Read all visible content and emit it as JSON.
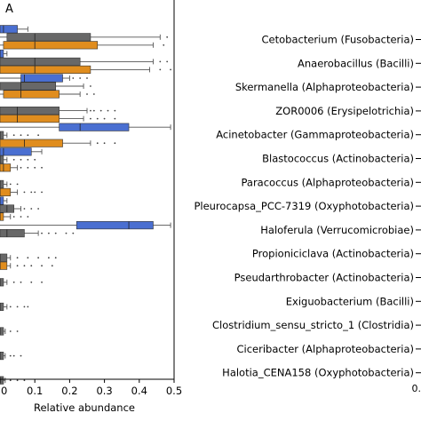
{
  "panel_label": "A",
  "right_panel_tick": "0.",
  "colors": {
    "blue": "#4a6fd1",
    "gray": "#686868",
    "orange": "#e08d1e"
  },
  "chart_data": {
    "type": "box",
    "orientation": "horizontal",
    "xlabel": "Relative abundance",
    "xlim": [
      0,
      0.5
    ],
    "xticks": [
      0,
      0.1,
      0.2,
      0.3,
      0.4,
      0.5
    ],
    "xtick_labels": [
      "0",
      "0.1",
      "0.2",
      "0.3",
      "0.4",
      "0.5"
    ],
    "categories": [
      "Cetobacterium (Fusobacteria)",
      "Anaerobacillus (Bacilli)",
      "Skermanella (Alphaproteobacteria)",
      "ZOR0006 (Erysipelotrichia)",
      "Acinetobacter (Gammaproteobacteria)",
      "Blastococcus (Actinobacteria)",
      "Paracoccus (Alphaproteobacteria)",
      "Pleurocapsa_PCC-7319 (Oxyphotobacteria)",
      "Haloferula (Verrucomicrobiae)",
      "Propioniciclava (Actinobacteria)",
      "Pseudarthrobacter (Actinobacteria)",
      "Exiguobacterium (Bacilli)",
      "Clostridium_sensu_stricto_1 (Clostridia)",
      "Ciceribacter (Alphaproteobacteria)",
      "Halotia_CENA158 (Oxyphotobacteria)"
    ],
    "series": [
      {
        "color": "blue",
        "boxes": [
          {
            "min": 0,
            "q1": 0.0,
            "median": 0.01,
            "q3": 0.05,
            "max": 0.08,
            "fliers": []
          },
          {
            "min": 0,
            "q1": 0.0,
            "median": 0.0,
            "q3": 0.01,
            "max": 0.02,
            "fliers": []
          },
          {
            "min": 0,
            "q1": 0.06,
            "median": 0.07,
            "q3": 0.18,
            "max": 0.2,
            "fliers": [
              0.21,
              0.23,
              0.25
            ]
          },
          null,
          {
            "min": 0,
            "q1": 0.17,
            "median": 0.23,
            "q3": 0.37,
            "max": 0.49,
            "fliers": []
          },
          {
            "min": 0,
            "q1": 0.0,
            "median": 0.01,
            "q3": 0.09,
            "max": 0.12,
            "fliers": []
          },
          null,
          {
            "min": 0,
            "q1": 0.0,
            "median": 0.0,
            "q3": 0.01,
            "max": 0.02,
            "fliers": []
          },
          {
            "min": 0,
            "q1": 0.22,
            "median": 0.37,
            "q3": 0.44,
            "max": 0.49,
            "fliers": []
          },
          null,
          null,
          null,
          null,
          null,
          null
        ]
      },
      {
        "color": "gray",
        "boxes": [
          {
            "min": 0,
            "q1": 0.02,
            "median": 0.1,
            "q3": 0.26,
            "max": 0.46,
            "fliers": [
              0.48
            ]
          },
          {
            "min": 0,
            "q1": 0.0,
            "median": 0.1,
            "q3": 0.23,
            "max": 0.44,
            "fliers": [
              0.46,
              0.48
            ]
          },
          {
            "min": 0,
            "q1": 0.0,
            "median": 0.06,
            "q3": 0.16,
            "max": 0.24,
            "fliers": [
              0.26
            ]
          },
          {
            "min": 0,
            "q1": 0.0,
            "median": 0.05,
            "q3": 0.17,
            "max": 0.25,
            "fliers": [
              0.26,
              0.27,
              0.29,
              0.31,
              0.33
            ]
          },
          {
            "min": 0,
            "q1": 0.0,
            "median": 0.0,
            "q3": 0.01,
            "max": 0.02,
            "fliers": [
              0.04,
              0.06,
              0.08,
              0.11
            ]
          },
          {
            "min": 0,
            "q1": 0.0,
            "median": 0.0,
            "q3": 0.01,
            "max": 0.02,
            "fliers": [
              0.04,
              0.06,
              0.08,
              0.1
            ]
          },
          {
            "min": 0,
            "q1": 0.0,
            "median": 0.0,
            "q3": 0.01,
            "max": 0.02,
            "fliers": [
              0.03,
              0.05
            ]
          },
          {
            "min": 0,
            "q1": 0.0,
            "median": 0.02,
            "q3": 0.04,
            "max": 0.06,
            "fliers": [
              0.07,
              0.09,
              0.11
            ]
          },
          {
            "min": 0,
            "q1": 0.0,
            "median": 0.02,
            "q3": 0.07,
            "max": 0.11,
            "fliers": [
              0.12,
              0.14,
              0.16,
              0.19,
              0.21
            ]
          },
          {
            "min": 0,
            "q1": 0.0,
            "median": 0.0,
            "q3": 0.02,
            "max": 0.03,
            "fliers": [
              0.05,
              0.08,
              0.11,
              0.14,
              0.16
            ]
          },
          {
            "min": 0,
            "q1": 0.0,
            "median": 0.0,
            "q3": 0.01,
            "max": 0.02,
            "fliers": [
              0.04,
              0.06,
              0.09,
              0.12
            ]
          },
          {
            "min": 0,
            "q1": 0.0,
            "median": 0.0,
            "q3": 0.01,
            "max": 0.02,
            "fliers": [
              0.03,
              0.05,
              0.07,
              0.08
            ]
          },
          {
            "min": 0,
            "q1": 0.0,
            "median": 0.0,
            "q3": 0.01,
            "max": 0.015,
            "fliers": [
              0.03,
              0.05
            ]
          },
          {
            "min": 0,
            "q1": 0.0,
            "median": 0.0,
            "q3": 0.01,
            "max": 0.015,
            "fliers": [
              0.03,
              0.04,
              0.06
            ]
          },
          {
            "min": 0,
            "q1": 0.0,
            "median": 0.0,
            "q3": 0.01,
            "max": 0.015,
            "fliers": [
              0.03,
              0.05,
              0.07
            ]
          }
        ]
      },
      {
        "color": "orange",
        "boxes": [
          {
            "min": 0,
            "q1": 0.01,
            "median": 0.1,
            "q3": 0.28,
            "max": 0.44,
            "fliers": [
              0.47
            ]
          },
          {
            "min": 0,
            "q1": 0.0,
            "median": 0.1,
            "q3": 0.26,
            "max": 0.43,
            "fliers": [
              0.46,
              0.49
            ]
          },
          {
            "min": 0,
            "q1": 0.01,
            "median": 0.06,
            "q3": 0.17,
            "max": 0.23,
            "fliers": [
              0.25,
              0.27
            ]
          },
          {
            "min": 0,
            "q1": 0.0,
            "median": 0.05,
            "q3": 0.17,
            "max": 0.24,
            "fliers": [
              0.26,
              0.28,
              0.3,
              0.33
            ]
          },
          {
            "min": 0,
            "q1": 0.0,
            "median": 0.07,
            "q3": 0.18,
            "max": 0.26,
            "fliers": [
              0.28,
              0.3,
              0.33
            ]
          },
          {
            "min": 0,
            "q1": 0.0,
            "median": 0.01,
            "q3": 0.03,
            "max": 0.05,
            "fliers": [
              0.06,
              0.08,
              0.1,
              0.12
            ]
          },
          {
            "min": 0,
            "q1": 0.0,
            "median": 0.0,
            "q3": 0.03,
            "max": 0.05,
            "fliers": [
              0.07,
              0.09,
              0.1,
              0.12
            ]
          },
          {
            "min": 0,
            "q1": 0.0,
            "median": 0.0,
            "q3": 0.01,
            "max": 0.03,
            "fliers": [
              0.04,
              0.06,
              0.08
            ]
          },
          null,
          {
            "min": 0,
            "q1": 0.0,
            "median": 0.0,
            "q3": 0.02,
            "max": 0.03,
            "fliers": [
              0.05,
              0.07,
              0.09,
              0.12,
              0.15
            ]
          },
          null,
          null,
          null,
          null,
          null
        ]
      }
    ]
  }
}
